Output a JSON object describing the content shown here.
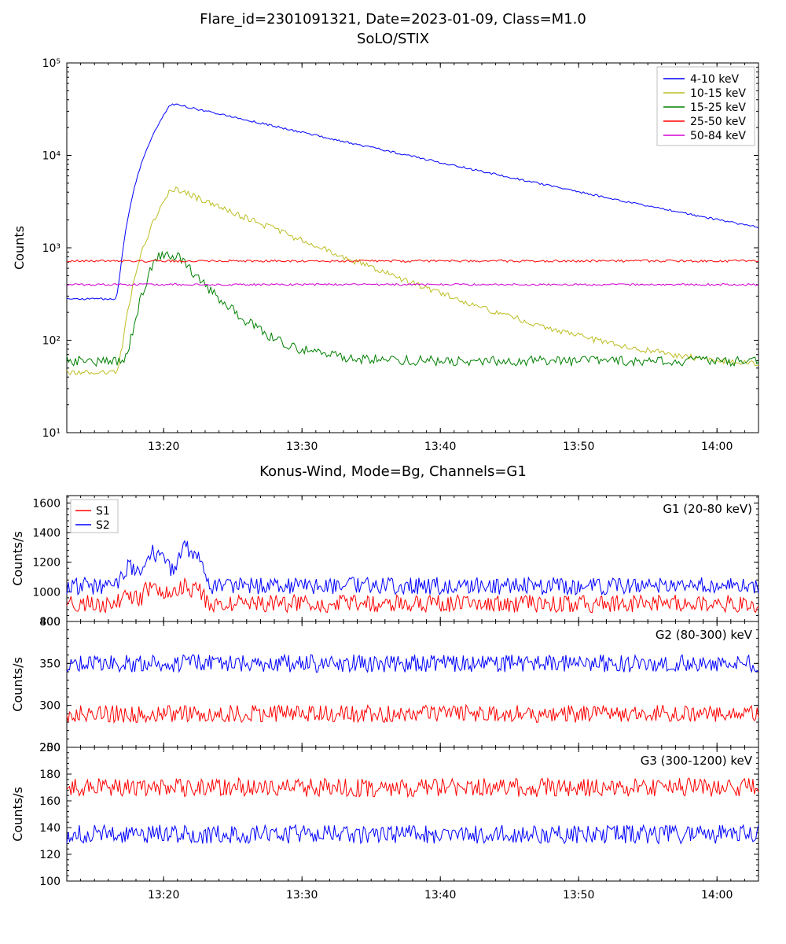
{
  "main_title": "Flare_id=2301091321, Date=2023-01-09, Class=M1.0",
  "top": {
    "subtitle": "SoLO/STIX",
    "ylabel": "Counts",
    "yscale": "log",
    "ylim": [
      10,
      100000
    ],
    "yticks": [
      10,
      100,
      1000,
      10000,
      100000
    ],
    "ytick_labels": [
      "10¹",
      "10²",
      "10³",
      "10⁴",
      "10⁵"
    ],
    "xlim": [
      0,
      50
    ],
    "xticks": [
      7,
      17,
      27,
      37,
      47
    ],
    "xtick_labels": [
      "13:20",
      "13:30",
      "13:40",
      "13:50",
      "14:00"
    ],
    "series": [
      {
        "label": "4-10 keV",
        "color": "#0000ff"
      },
      {
        "label": "10-15 keV",
        "color": "#bcbd22"
      },
      {
        "label": "15-25 keV",
        "color": "#008000"
      },
      {
        "label": "25-50 keV",
        "color": "#ff0000"
      },
      {
        "label": "50-84 keV",
        "color": "#d000d0"
      }
    ],
    "line_width": 1.0,
    "bg": "#ffffff"
  },
  "bottom_title": "Konus-Wind, Mode=Bg, Channels=G1",
  "panels": [
    {
      "label": "G1 (20-80 keV)",
      "ylabel": "Counts/s",
      "ylim": [
        800,
        1650
      ],
      "yticks": [
        800,
        1000,
        1200,
        1400,
        1600
      ],
      "s1_base": 920,
      "s2_base": 1040,
      "flare": true
    },
    {
      "label": "G2 (80-300) keV",
      "ylabel": "Counts/s",
      "ylim": [
        250,
        400
      ],
      "yticks": [
        250,
        300,
        350,
        400
      ],
      "s1_base": 290,
      "s2_base": 350,
      "flare": false
    },
    {
      "label": "G3 (300-1200) keV",
      "ylabel": "Counts/s",
      "ylim": [
        100,
        200
      ],
      "yticks": [
        100,
        120,
        140,
        160,
        180,
        200
      ],
      "s1_base": 170,
      "s2_base": 135,
      "flare": false
    }
  ],
  "panel_series": [
    {
      "label": "S1",
      "color": "#ff0000"
    },
    {
      "label": "S2",
      "color": "#0000ff"
    }
  ],
  "colors": {
    "axis": "#000000",
    "tick": "#000000",
    "text": "#000000"
  }
}
